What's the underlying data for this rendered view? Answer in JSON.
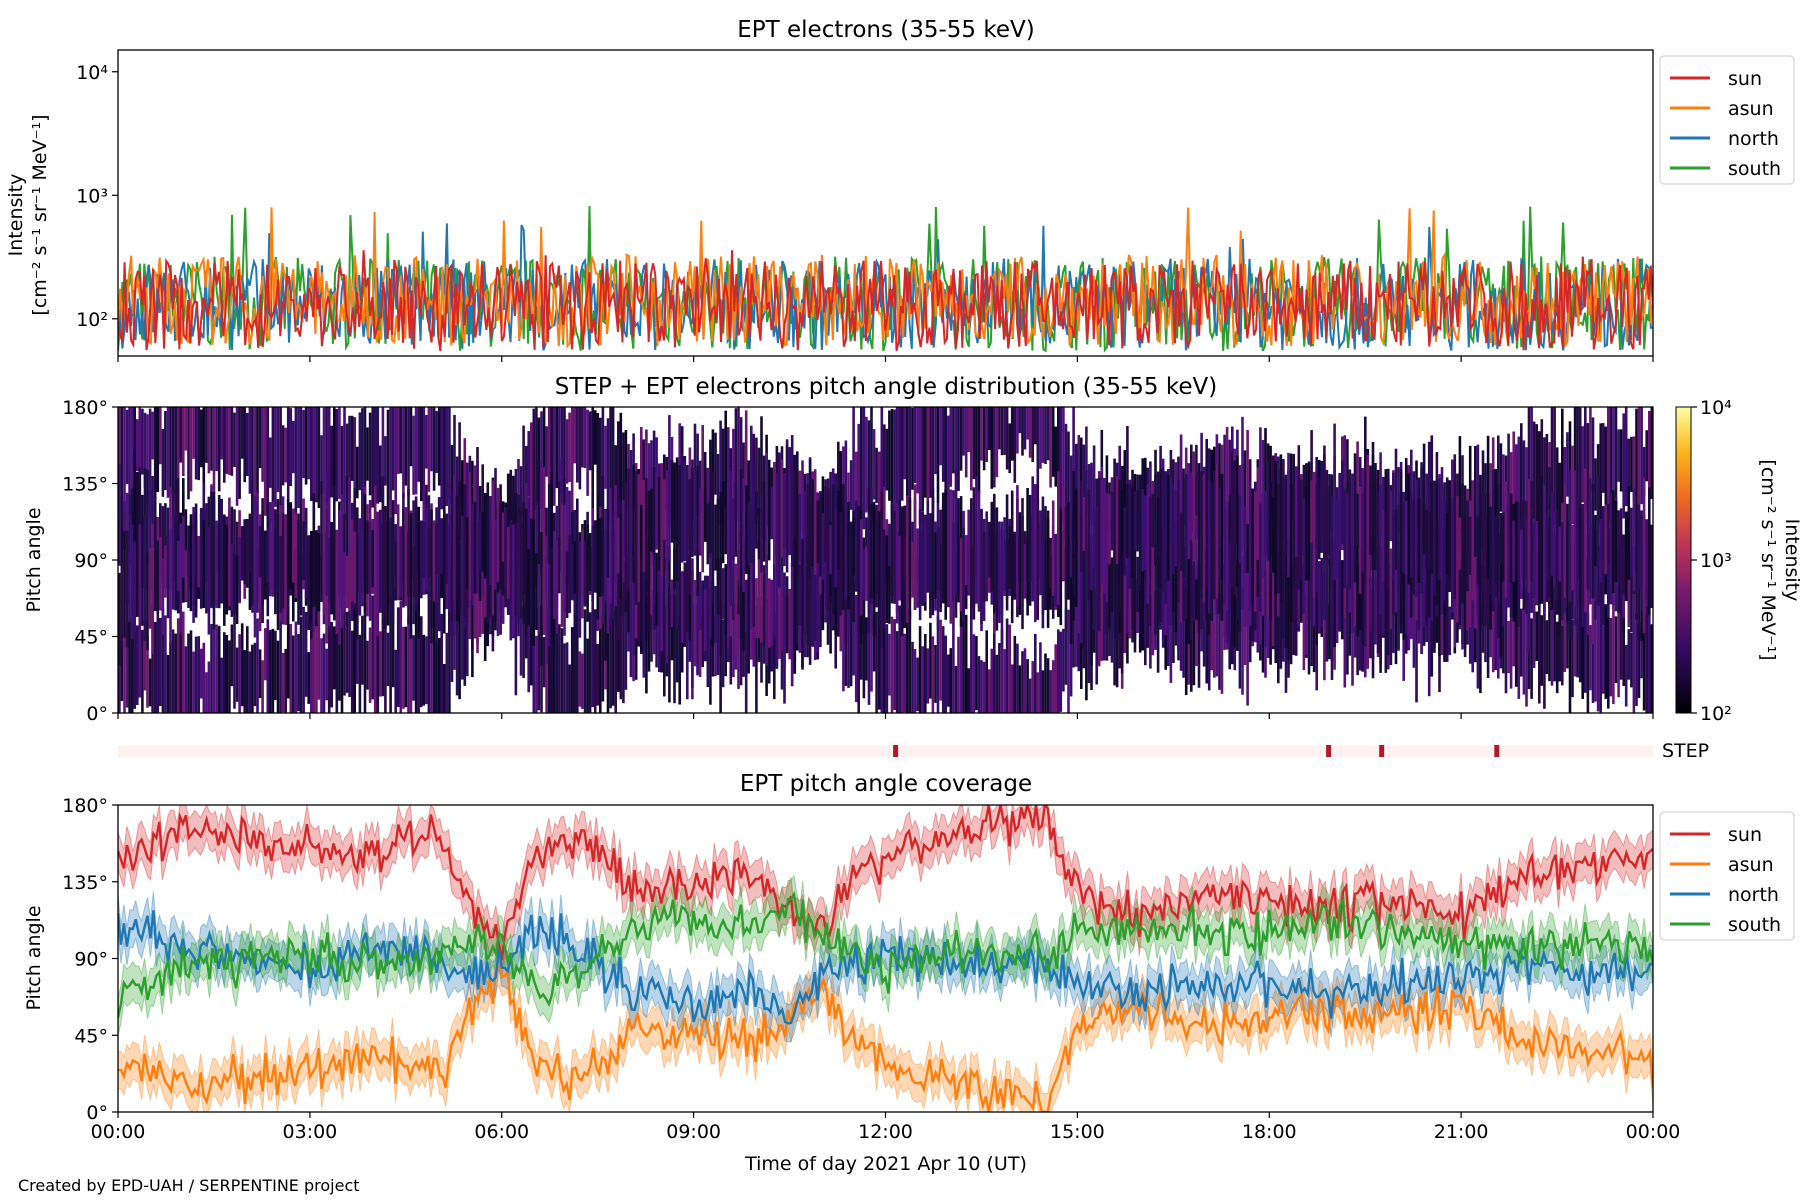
{
  "figure": {
    "credit": "Created by EPD-UAH / SERPENTINE project",
    "xlabel": "Time of day 2021 Apr 10 (UT)",
    "xticks": [
      "00:00",
      "03:00",
      "06:00",
      "09:00",
      "12:00",
      "15:00",
      "18:00",
      "21:00",
      "00:00"
    ]
  },
  "colors": {
    "sun": "#d62728",
    "asun": "#ff7f0e",
    "north": "#1f77b4",
    "south": "#2ca02c",
    "step_bar_bg": "#fdf2ef",
    "step_bar_mark": "#b2182b"
  },
  "chart_data": [
    {
      "type": "line",
      "title": "EPT electrons (35-55 keV)",
      "ylabel_line1": "Intensity",
      "ylabel_line2": "[cm⁻² s⁻¹ sr⁻¹ MeV⁻¹]",
      "yscale": "log",
      "ylim": [
        50,
        15000
      ],
      "yticks": [
        {
          "value": 100,
          "label": "10²"
        },
        {
          "value": 1000,
          "label": "10³"
        },
        {
          "value": 10000,
          "label": "10⁴"
        }
      ],
      "xlim_hours": [
        0,
        24
      ],
      "legend_position": "upper-right-outside",
      "series": [
        {
          "name": "sun",
          "color_key": "sun",
          "typical_range": [
            55,
            300
          ],
          "peak": 400
        },
        {
          "name": "asun",
          "color_key": "asun",
          "typical_range": [
            60,
            330
          ],
          "peak": 850
        },
        {
          "name": "north",
          "color_key": "north",
          "typical_range": [
            55,
            310
          ],
          "peak": 620
        },
        {
          "name": "south",
          "color_key": "south",
          "typical_range": [
            55,
            320
          ],
          "peak": 820
        }
      ]
    },
    {
      "type": "heatmap",
      "title": "STEP + EPT electrons pitch angle distribution (35-55 keV)",
      "ylabel": "Pitch angle",
      "ylim": [
        0,
        180
      ],
      "yticks": [
        "0°",
        "45°",
        "90°",
        "135°",
        "180°"
      ],
      "ytick_values": [
        0,
        45,
        90,
        135,
        180
      ],
      "xlim_hours": [
        0,
        24
      ],
      "colorbar": {
        "label_line1": "Intensity",
        "label_line2": "[cm⁻² s⁻¹ sr⁻¹ MeV⁻¹]",
        "scale": "log",
        "range": [
          100,
          10000
        ],
        "ticks": [
          {
            "value": 100,
            "label": "10²"
          },
          {
            "value": 1000,
            "label": "10³"
          },
          {
            "value": 10000,
            "label": "10⁴"
          }
        ]
      }
    },
    {
      "type": "bar",
      "title": "",
      "label": "STEP",
      "marks_hours": [
        12.15,
        18.92,
        19.75,
        21.55
      ]
    },
    {
      "type": "line",
      "title": "EPT pitch angle coverage",
      "ylabel": "Pitch angle",
      "ylim": [
        0,
        180
      ],
      "yticks": [
        "0°",
        "45°",
        "90°",
        "135°",
        "180°"
      ],
      "ytick_values": [
        0,
        45,
        90,
        135,
        180
      ],
      "xlim_hours": [
        0,
        24
      ],
      "legend_position": "upper-right-outside",
      "series": [
        {
          "name": "sun",
          "color_key": "sun",
          "x": [
            0,
            1,
            2,
            3,
            4,
            5,
            5.5,
            6,
            6.5,
            7,
            7.5,
            8,
            9,
            10,
            10.5,
            11,
            11.5,
            12,
            13,
            13.8,
            14.5,
            15,
            16,
            17,
            18,
            19,
            20,
            21,
            22,
            23,
            24
          ],
          "y": [
            150,
            165,
            160,
            155,
            150,
            165,
            120,
            100,
            150,
            160,
            155,
            130,
            135,
            140,
            120,
            110,
            135,
            150,
            160,
            170,
            175,
            130,
            115,
            130,
            125,
            120,
            125,
            115,
            140,
            145,
            150
          ]
        },
        {
          "name": "asun",
          "color_key": "asun",
          "x": [
            0,
            1,
            2,
            3,
            4,
            5,
            5.5,
            6,
            6.5,
            7,
            7.5,
            8,
            9,
            10,
            10.5,
            11,
            11.5,
            12,
            13,
            13.8,
            14.5,
            15,
            16,
            17,
            18,
            19,
            20,
            21,
            22,
            23,
            24
          ],
          "y": [
            30,
            15,
            20,
            25,
            30,
            20,
            60,
            80,
            30,
            20,
            25,
            50,
            45,
            40,
            60,
            70,
            45,
            30,
            20,
            10,
            5,
            50,
            65,
            50,
            55,
            60,
            55,
            65,
            40,
            35,
            30
          ]
        },
        {
          "name": "north",
          "color_key": "north",
          "x": [
            0,
            1,
            2,
            3,
            4,
            5,
            5.5,
            6,
            6.5,
            7,
            7.5,
            8,
            9,
            10,
            10.5,
            11,
            11.5,
            12,
            13,
            13.8,
            14.5,
            15,
            16,
            17,
            18,
            19,
            20,
            21,
            22,
            23,
            24
          ],
          "y": [
            110,
            95,
            90,
            85,
            95,
            90,
            80,
            85,
            105,
            100,
            90,
            70,
            65,
            70,
            55,
            80,
            85,
            95,
            85,
            85,
            90,
            70,
            70,
            75,
            75,
            70,
            75,
            80,
            85,
            80,
            85
          ]
        },
        {
          "name": "south",
          "color_key": "south",
          "x": [
            0,
            1,
            2,
            3,
            4,
            5,
            5.5,
            6,
            6.5,
            7,
            7.5,
            8,
            9,
            10,
            10.5,
            11,
            11.5,
            12,
            13,
            13.8,
            14.5,
            15,
            16,
            17,
            18,
            19,
            20,
            21,
            22,
            23,
            24
          ],
          "y": [
            70,
            85,
            90,
            95,
            85,
            90,
            100,
            95,
            75,
            80,
            90,
            110,
            115,
            110,
            125,
            100,
            95,
            85,
            95,
            95,
            90,
            110,
            110,
            105,
            105,
            110,
            105,
            100,
            95,
            100,
            95
          ]
        }
      ]
    }
  ]
}
